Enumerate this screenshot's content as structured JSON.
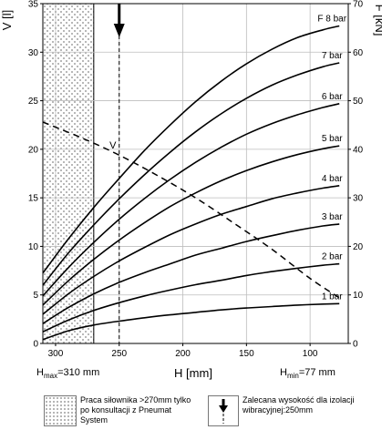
{
  "chart_data": {
    "type": "line",
    "x_label": "H [mm]",
    "y_left_label": "V [l]",
    "y_right_label": "F [kN]",
    "x_range": [
      310,
      70
    ],
    "x_reversed": true,
    "y_left_range": [
      0,
      35
    ],
    "y_right_range": [
      0,
      70
    ],
    "x_ticks": [
      300,
      250,
      200,
      150,
      100
    ],
    "y_left_ticks": [
      0,
      5,
      10,
      15,
      20,
      25,
      30,
      35
    ],
    "y_right_ticks": [
      0,
      10,
      20,
      30,
      40,
      50,
      60,
      70
    ],
    "grid": true,
    "force_series": [
      {
        "name": "1 bar",
        "x": [
          310,
          290,
          270,
          250,
          230,
          210,
          190,
          170,
          150,
          130,
          110,
          90,
          77
        ],
        "y": [
          0.8,
          2.6,
          3.8,
          4.6,
          5.3,
          5.9,
          6.4,
          6.9,
          7.3,
          7.6,
          7.9,
          8.1,
          8.2
        ]
      },
      {
        "name": "2 bar",
        "x": [
          310,
          290,
          270,
          250,
          230,
          210,
          190,
          170,
          150,
          130,
          110,
          90,
          77
        ],
        "y": [
          2.4,
          4.8,
          6.8,
          8.4,
          9.8,
          11.0,
          12.1,
          13.0,
          14.0,
          14.8,
          15.5,
          16.1,
          16.4
        ]
      },
      {
        "name": "3 bar",
        "x": [
          310,
          290,
          270,
          250,
          230,
          210,
          190,
          170,
          150,
          130,
          110,
          90,
          77
        ],
        "y": [
          4.1,
          7.4,
          10.2,
          12.6,
          14.6,
          16.4,
          18.2,
          19.6,
          21.0,
          22.2,
          23.3,
          24.2,
          24.6
        ]
      },
      {
        "name": "4 bar",
        "x": [
          310,
          290,
          270,
          250,
          230,
          210,
          190,
          170,
          150,
          130,
          110,
          90,
          77
        ],
        "y": [
          6.0,
          10.2,
          13.8,
          17.0,
          19.8,
          22.4,
          24.6,
          26.6,
          28.2,
          29.8,
          31.0,
          32.0,
          32.5
        ]
      },
      {
        "name": "5 bar",
        "x": [
          310,
          290,
          270,
          250,
          230,
          210,
          190,
          170,
          150,
          130,
          110,
          90,
          77
        ],
        "y": [
          7.9,
          12.9,
          17.3,
          21.3,
          24.9,
          28.2,
          31.0,
          33.5,
          35.6,
          37.4,
          38.9,
          40.1,
          40.7
        ]
      },
      {
        "name": "6 bar",
        "x": [
          310,
          290,
          270,
          250,
          230,
          210,
          190,
          170,
          150,
          130,
          110,
          90,
          77
        ],
        "y": [
          9.8,
          15.6,
          20.8,
          25.6,
          29.9,
          33.8,
          37.3,
          40.4,
          43.1,
          45.3,
          47.1,
          48.6,
          49.4
        ]
      },
      {
        "name": "7 bar",
        "x": [
          310,
          290,
          270,
          250,
          230,
          210,
          190,
          170,
          150,
          130,
          110,
          90,
          77
        ],
        "y": [
          12.0,
          18.6,
          24.4,
          29.8,
          34.8,
          39.4,
          43.6,
          47.3,
          50.5,
          53.2,
          55.3,
          57.0,
          57.8
        ]
      },
      {
        "name": "8 bar",
        "x": [
          310,
          290,
          270,
          250,
          230,
          210,
          190,
          170,
          150,
          130,
          110,
          90,
          77
        ],
        "y": [
          14.5,
          21.5,
          28.0,
          34.0,
          39.8,
          45.0,
          49.8,
          54.0,
          57.6,
          60.6,
          63.0,
          64.6,
          65.4
        ]
      }
    ],
    "series_label_prefix": "F",
    "volume_series": {
      "marker_label": "V",
      "x": [
        310,
        280,
        250,
        220,
        190,
        160,
        130,
        100,
        77
      ],
      "y": [
        22.8,
        21.2,
        19.4,
        17.3,
        15.0,
        12.4,
        9.7,
        6.7,
        4.7
      ]
    },
    "hatched_region": {
      "x_from": 310,
      "x_to": 270
    },
    "vertical_marker": {
      "x": 250
    },
    "h_max_note": {
      "sym": "H",
      "sub": "max",
      "text": "=310 mm"
    },
    "h_min_note": {
      "sym": "H",
      "sub": "min",
      "text": "=77 mm"
    }
  },
  "legend": {
    "hatch_text": "Praca siłownika >270mm tylko po konsultacji z Pneumat System",
    "arrow_text": "Zalecana wysokość dla izolacji wibracyjnej:250mm"
  }
}
